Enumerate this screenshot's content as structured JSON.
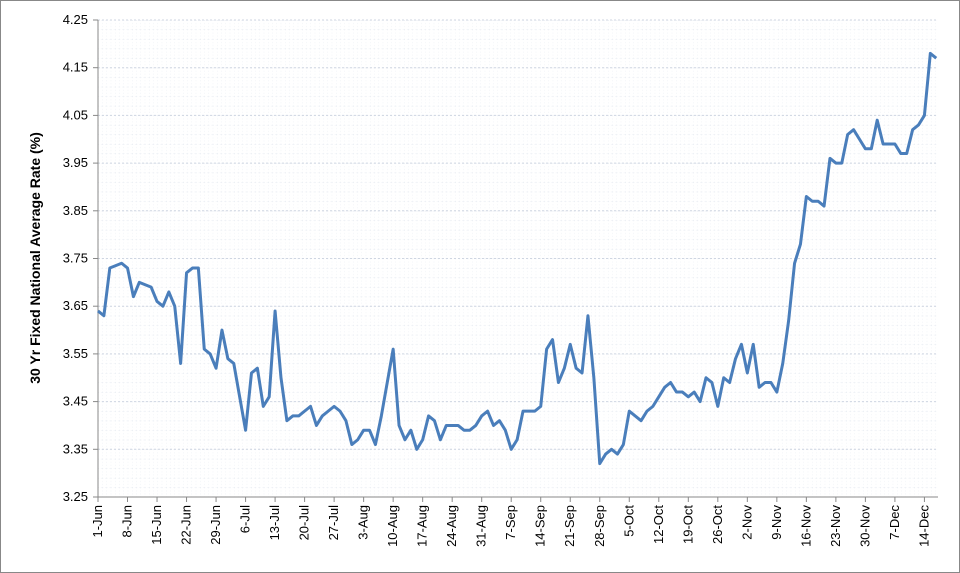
{
  "chart_data": {
    "type": "line",
    "y_label": "30 Yr Fixed National Average Rate (%)",
    "categories": [
      "1-Jun",
      null,
      null,
      null,
      null,
      "8-Jun",
      null,
      null,
      null,
      null,
      "15-Jun",
      null,
      null,
      null,
      null,
      "22-Jun",
      null,
      null,
      null,
      null,
      "29-Jun",
      null,
      null,
      null,
      null,
      "6-Jul",
      null,
      null,
      null,
      null,
      "13-Jul",
      null,
      null,
      null,
      null,
      "20-Jul",
      null,
      null,
      null,
      null,
      "27-Jul",
      null,
      null,
      null,
      null,
      "3-Aug",
      null,
      null,
      null,
      null,
      "10-Aug",
      null,
      null,
      null,
      null,
      "17-Aug",
      null,
      null,
      null,
      null,
      "24-Aug",
      null,
      null,
      null,
      null,
      "31-Aug",
      null,
      null,
      null,
      null,
      "7-Sep",
      null,
      null,
      null,
      null,
      "14-Sep",
      null,
      null,
      null,
      null,
      "21-Sep",
      null,
      null,
      null,
      null,
      "28-Sep",
      null,
      null,
      null,
      null,
      "5-Oct",
      null,
      null,
      null,
      null,
      "12-Oct",
      null,
      null,
      null,
      null,
      "19-Oct",
      null,
      null,
      null,
      null,
      "26-Oct",
      null,
      null,
      null,
      null,
      "2-Nov",
      null,
      null,
      null,
      null,
      "9-Nov",
      null,
      null,
      null,
      null,
      "16-Nov",
      null,
      null,
      null,
      null,
      "23-Nov",
      null,
      null,
      null,
      null,
      "30-Nov",
      null,
      null,
      null,
      null,
      "7-Dec",
      null,
      null,
      null,
      null,
      "14-Dec",
      null,
      null
    ],
    "series": [
      {
        "name": "30 Yr Fixed",
        "color": "#4a7ebb",
        "values": [
          3.64,
          3.63,
          3.73,
          3.735,
          3.74,
          3.73,
          3.67,
          3.7,
          3.695,
          3.69,
          3.66,
          3.65,
          3.68,
          3.65,
          3.53,
          3.72,
          3.73,
          3.73,
          3.56,
          3.55,
          3.52,
          3.6,
          3.54,
          3.53,
          3.46,
          3.39,
          3.51,
          3.52,
          3.44,
          3.46,
          3.64,
          3.5,
          3.41,
          3.42,
          3.42,
          3.43,
          3.44,
          3.4,
          3.42,
          3.43,
          3.44,
          3.43,
          3.41,
          3.36,
          3.37,
          3.39,
          3.39,
          3.36,
          3.42,
          3.49,
          3.56,
          3.4,
          3.37,
          3.39,
          3.35,
          3.37,
          3.42,
          3.41,
          3.37,
          3.4,
          3.4,
          3.4,
          3.39,
          3.39,
          3.4,
          3.42,
          3.43,
          3.4,
          3.41,
          3.39,
          3.35,
          3.37,
          3.43,
          3.43,
          3.43,
          3.44,
          3.56,
          3.58,
          3.49,
          3.52,
          3.57,
          3.52,
          3.51,
          3.63,
          3.5,
          3.32,
          3.34,
          3.35,
          3.34,
          3.36,
          3.43,
          3.42,
          3.41,
          3.43,
          3.44,
          3.46,
          3.48,
          3.49,
          3.47,
          3.47,
          3.46,
          3.47,
          3.45,
          3.5,
          3.49,
          3.44,
          3.5,
          3.49,
          3.54,
          3.57,
          3.51,
          3.57,
          3.48,
          3.49,
          3.49,
          3.47,
          3.53,
          3.62,
          3.74,
          3.78,
          3.88,
          3.87,
          3.87,
          3.86,
          3.96,
          3.95,
          3.95,
          4.01,
          4.02,
          4.0,
          3.98,
          3.98,
          4.04,
          3.99,
          3.99,
          3.99,
          3.97,
          3.97,
          4.02,
          4.03,
          4.05,
          4.18,
          4.17
        ]
      }
    ],
    "ylim": [
      3.25,
      4.25
    ],
    "yticks": [
      3.25,
      3.35,
      3.45,
      3.55,
      3.65,
      3.75,
      3.85,
      3.95,
      4.05,
      4.15,
      4.25
    ],
    "grid": true
  }
}
